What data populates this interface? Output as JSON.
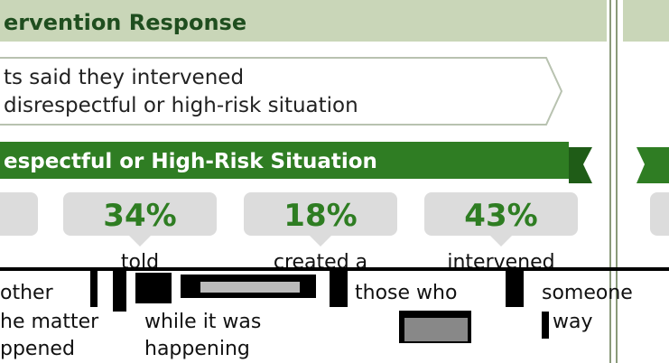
{
  "header": {
    "title": "ervention Response"
  },
  "callout": {
    "lines": [
      "ts said they intervened",
      "disrespectful or high-risk situation"
    ]
  },
  "banner": {
    "text": "espectful or High-Risk Situation"
  },
  "stats": [
    {
      "value": "34%",
      "label": "told"
    },
    {
      "value": "18%",
      "label": "created a"
    },
    {
      "value": "43%",
      "label": "intervened"
    }
  ],
  "fragments": [
    "other",
    "those who",
    "someone",
    "he matter",
    "while it was",
    "way",
    "ppened",
    "happening"
  ]
}
